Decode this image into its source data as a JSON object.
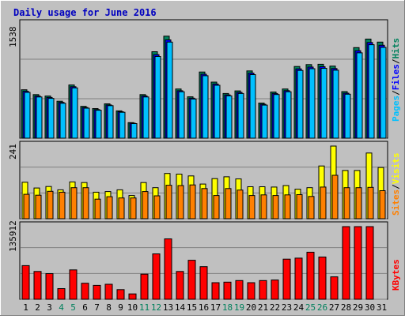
{
  "chart_data": [
    {
      "type": "bar",
      "title": "Daily usage for June 2016",
      "categories": [
        "1",
        "2",
        "3",
        "4",
        "5",
        "6",
        "7",
        "8",
        "9",
        "10",
        "11",
        "12",
        "13",
        "14",
        "15",
        "16",
        "17",
        "18",
        "19",
        "20",
        "21",
        "22",
        "23",
        "24",
        "25",
        "26",
        "27",
        "28",
        "29",
        "30",
        "31"
      ],
      "weekend_days": [
        "4",
        "5",
        "11",
        "12",
        "18",
        "19",
        "25",
        "26"
      ],
      "ymax_label": "1538",
      "ymax": 1538,
      "ylabel_parts": [
        "Pages",
        "Files",
        "Hits"
      ],
      "series": [
        {
          "name": "Hits",
          "color": "#00805c",
          "values": [
            655,
            590,
            570,
            500,
            720,
            430,
            400,
            465,
            370,
            210,
            590,
            1170,
            1380,
            665,
            560,
            895,
            758,
            605,
            640,
            910,
            475,
            625,
            665,
            970,
            995,
            1000,
            975,
            630,
            1225,
            1340,
            1300
          ]
        },
        {
          "name": "Files",
          "color": "#0000ff",
          "values": [
            634,
            570,
            551,
            484,
            696,
            416,
            387,
            450,
            358,
            203,
            571,
            1130,
            1330,
            642,
            542,
            865,
            733,
            585,
            619,
            880,
            459,
            605,
            643,
            938,
            962,
            967,
            942,
            609,
            1183,
            1295,
            1257
          ]
        },
        {
          "name": "Pages",
          "color": "#00c0ff",
          "values": [
            620,
            557,
            538,
            472,
            680,
            406,
            378,
            440,
            350,
            198,
            558,
            1105,
            1300,
            628,
            530,
            845,
            716,
            572,
            605,
            860,
            448,
            591,
            628,
            916,
            940,
            945,
            920,
            595,
            1155,
            1265,
            1228
          ]
        }
      ]
    },
    {
      "type": "bar",
      "ymax_label": "241",
      "ymax": 241,
      "ylabel_parts": [
        "Sites",
        "Visits"
      ],
      "series": [
        {
          "name": "Visits",
          "color": "#ffff00",
          "values": [
            121,
            102,
            107,
            96,
            122,
            120,
            88,
            90,
            96,
            77,
            120,
            103,
            150,
            148,
            142,
            115,
            133,
            139,
            132,
            106,
            106,
            105,
            110,
            98,
            103,
            175,
            241,
            160,
            160,
            218,
            170
          ]
        },
        {
          "name": "Sites",
          "color": "#ff8000",
          "values": [
            81,
            78,
            91,
            88,
            103,
            103,
            65,
            73,
            69,
            69,
            90,
            76,
            111,
            110,
            112,
            100,
            77,
            100,
            95,
            77,
            79,
            77,
            79,
            80,
            74,
            105,
            144,
            103,
            103,
            104,
            93
          ]
        }
      ]
    },
    {
      "type": "bar",
      "ymax_label": "135912",
      "ymax": 135912,
      "ylabel_parts": [
        "KBytes"
      ],
      "series": [
        {
          "name": "KBytes",
          "color": "#ff0000",
          "values": [
            63000,
            52000,
            48000,
            20000,
            55000,
            30000,
            26000,
            28000,
            18000,
            10000,
            47000,
            85000,
            113000,
            52000,
            73000,
            61000,
            31000,
            32000,
            35000,
            31000,
            35000,
            36000,
            75000,
            77000,
            88000,
            79000,
            42000,
            135912,
            135912,
            135912,
            0
          ]
        }
      ]
    }
  ]
}
